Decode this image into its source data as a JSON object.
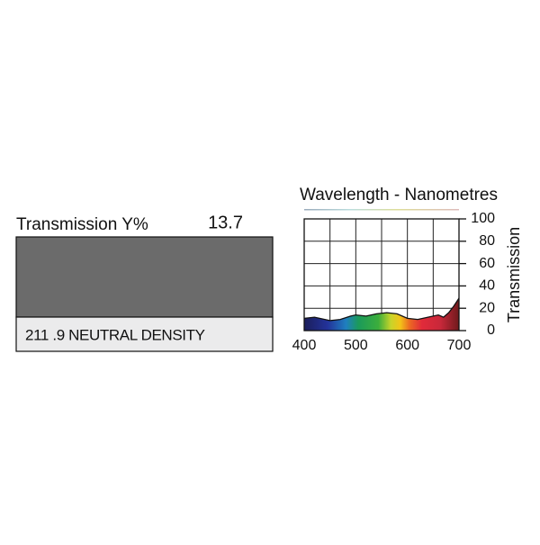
{
  "swatch": {
    "transmission_label": "Transmission Y%",
    "transmission_value": "13.7",
    "color": "#6b6b6b",
    "name": "211 .9 NEUTRAL DENSITY"
  },
  "chart_data": {
    "type": "area",
    "title": "Wavelength - Nanometres",
    "y_label": "Transmission",
    "x": [
      400,
      420,
      450,
      470,
      490,
      500,
      520,
      540,
      560,
      580,
      600,
      620,
      640,
      660,
      670,
      680,
      690,
      700
    ],
    "series": [
      {
        "values": [
          11,
          12,
          9,
          10,
          13,
          14,
          13,
          15,
          16,
          15,
          11,
          10,
          12,
          14,
          12,
          16,
          22,
          29
        ]
      }
    ],
    "xlim": [
      400,
      700
    ],
    "xticks": [
      400,
      500,
      600,
      700
    ],
    "xgrid": [
      400,
      450,
      500,
      550,
      600,
      650,
      700
    ],
    "ylim": [
      0,
      100
    ],
    "yticks": [
      0,
      20,
      40,
      60,
      80,
      100
    ],
    "grid": true
  }
}
